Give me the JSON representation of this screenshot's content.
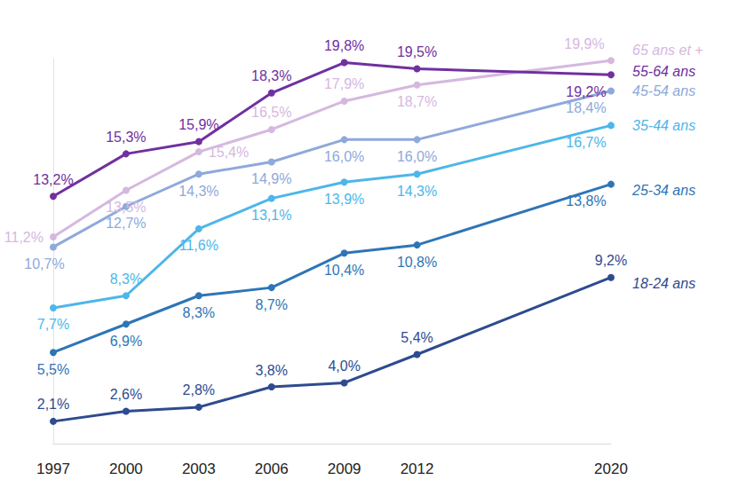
{
  "chart_data": {
    "type": "line",
    "x": [
      1997,
      2000,
      2003,
      2006,
      2009,
      2012,
      2020
    ],
    "xlim": [
      1997,
      2020
    ],
    "xticks": [
      1997,
      2000,
      2003,
      2006,
      2009,
      2012,
      2020
    ],
    "ylim": [
      1,
      20
    ],
    "yticks": [],
    "tick_labels": "x",
    "grid": false,
    "data_labels": true,
    "series": [
      {
        "name": "65 ans et +",
        "color": "#d5b8df",
        "marker": "circle",
        "values": [
          11.2,
          13.5,
          15.4,
          16.5,
          17.9,
          18.7,
          19.9
        ],
        "value_labels": [
          "11,2%",
          "13,5%",
          "15,4%",
          "16,5%",
          "17,9%",
          "18,7%",
          "19,9%"
        ]
      },
      {
        "name": "55-64 ans",
        "color": "#7030a0",
        "marker": "circle",
        "values": [
          13.2,
          15.3,
          15.9,
          18.3,
          19.8,
          19.5,
          19.2
        ],
        "value_labels": [
          "13,2%",
          "15,3%",
          "15,9%",
          "18,3%",
          "19,8%",
          "19,5%",
          "19,2%"
        ]
      },
      {
        "name": "45-54 ans",
        "color": "#8ea9db",
        "marker": "circle",
        "values": [
          10.7,
          12.7,
          14.3,
          14.9,
          16.0,
          16.0,
          18.4
        ],
        "value_labels": [
          "10,7%",
          "12,7%",
          "14,3%",
          "14,9%",
          "16,0%",
          "16,0%",
          "18,4%"
        ]
      },
      {
        "name": "35-44 ans",
        "color": "#4db6ea",
        "marker": "circle",
        "values": [
          7.7,
          8.3,
          11.6,
          13.1,
          13.9,
          14.3,
          16.7
        ],
        "value_labels": [
          "7,7%",
          "8,3%",
          "11,6%",
          "13,1%",
          "13,9%",
          "14,3%",
          "16,7%"
        ]
      },
      {
        "name": "25-34 ans",
        "color": "#2e75b6",
        "marker": "circle",
        "values": [
          5.5,
          6.9,
          8.3,
          8.7,
          10.4,
          10.8,
          13.8
        ],
        "value_labels": [
          "5,5%",
          "6,9%",
          "8,3%",
          "8,7%",
          "10,4%",
          "10,8%",
          "13,8%"
        ]
      },
      {
        "name": "18-24 ans",
        "color": "#2e4b8f",
        "marker": "circle",
        "values": [
          2.1,
          2.6,
          2.8,
          3.8,
          4.0,
          5.4,
          9.2
        ],
        "value_labels": [
          "2,1%",
          "2,6%",
          "2,8%",
          "3,8%",
          "4,0%",
          "5,4%",
          "9,2%"
        ]
      }
    ]
  }
}
